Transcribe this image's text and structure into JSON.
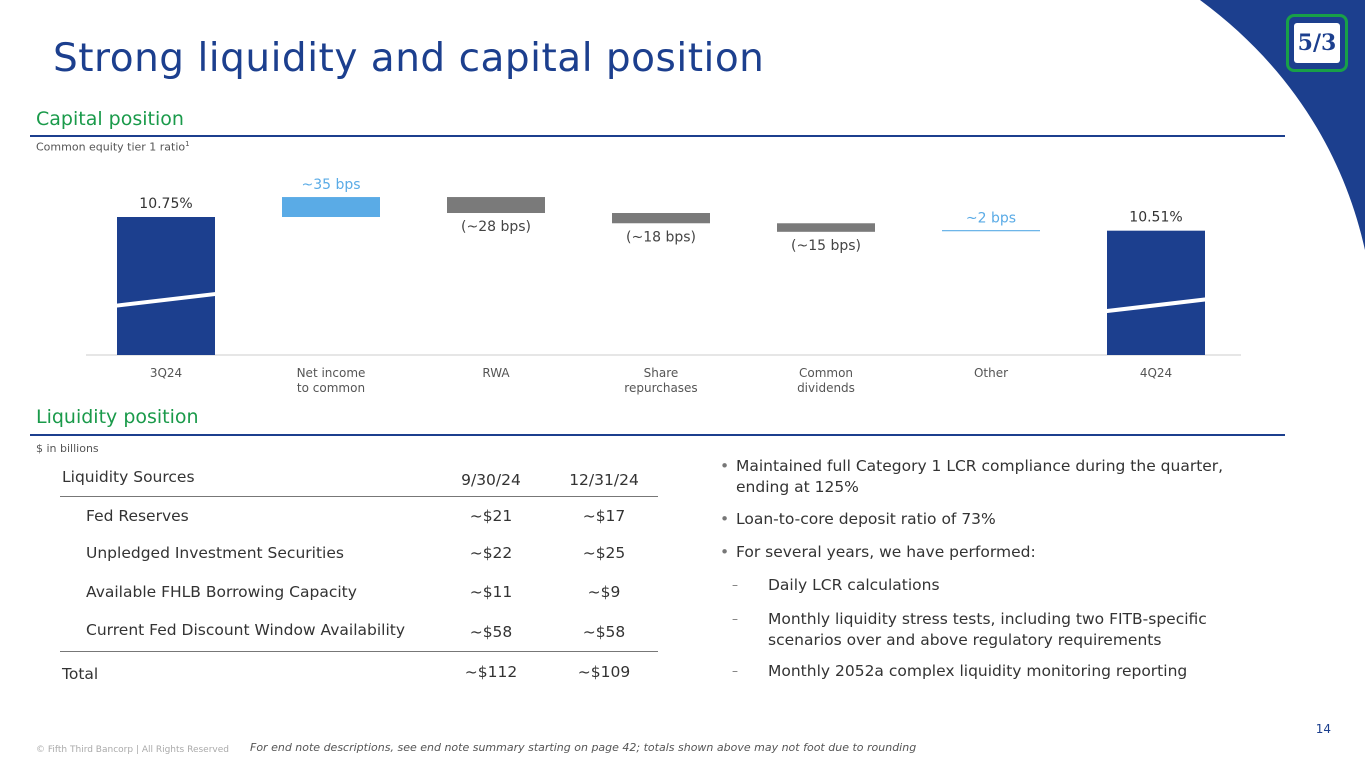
{
  "slide": {
    "title": "Strong liquidity and capital position",
    "page_number": "14",
    "copyright": "© Fifth Third Bancorp | All Rights Reserved",
    "footnote": "For end note descriptions, see end note summary starting on page 42; totals shown above may not foot due to rounding",
    "logo_text": "5/3"
  },
  "capital": {
    "section_title": "Capital position",
    "subtitle": "Common equity tier 1 ratio",
    "subtitle_sup": "1"
  },
  "colors": {
    "primary": "#1c3f8e",
    "accent_green": "#1a9a4a",
    "increase": "#5aabe6",
    "decrease": "#7a7a7a"
  },
  "chart_data": {
    "type": "bar",
    "subtype": "waterfall",
    "title": "",
    "ylabel": "Common equity tier 1 ratio",
    "unit": "%",
    "categories": [
      "3Q24",
      "Net income to common",
      "RWA",
      "Share repurchases",
      "Common dividends",
      "Other",
      "4Q24"
    ],
    "category_lines": [
      [
        "3Q24"
      ],
      [
        "Net income",
        "to common"
      ],
      [
        "RWA"
      ],
      [
        "Share",
        "repurchases"
      ],
      [
        "Common",
        "dividends"
      ],
      [
        "Other"
      ],
      [
        "4Q24"
      ]
    ],
    "start_value": 10.75,
    "end_value": 10.51,
    "changes_bps": [
      35,
      -28,
      -18,
      -15,
      2
    ],
    "labels": [
      "10.75%",
      "~35 bps",
      "(~28 bps)",
      "(~18 bps)",
      "(~15 bps)",
      "~2 bps",
      "10.51%"
    ],
    "axis_broken": true,
    "grid": false,
    "legend": "none"
  },
  "liquidity": {
    "section_title": "Liquidity position",
    "subtitle": "$ in billions",
    "table": {
      "headers": [
        "Liquidity Sources",
        "9/30/24",
        "12/31/24"
      ],
      "rows": [
        {
          "name": "Fed Reserves",
          "v1": "~$21",
          "v2": "~$17"
        },
        {
          "name": "Unpledged Investment Securities",
          "v1": "~$22",
          "v2": "~$25"
        },
        {
          "name": "Available FHLB Borrowing Capacity",
          "v1": "~$11",
          "v2": "~$9"
        },
        {
          "name": "Current Fed Discount Window Availability",
          "v1": "~$58",
          "v2": "~$58"
        }
      ],
      "total": {
        "name": "Total",
        "v1": "~$112",
        "v2": "~$109"
      }
    },
    "bullets": [
      {
        "level": 1,
        "text": "Maintained full Category 1 LCR compliance during the quarter, ending at 125%"
      },
      {
        "level": 1,
        "text": "Loan-to-core deposit ratio of 73%"
      },
      {
        "level": 1,
        "text": "For several years, we have performed:"
      },
      {
        "level": 2,
        "text": "Daily LCR calculations"
      },
      {
        "level": 2,
        "text": "Monthly liquidity stress tests, including two FITB-specific scenarios over and above regulatory requirements"
      },
      {
        "level": 2,
        "text": "Monthly 2052a complex liquidity monitoring reporting"
      }
    ]
  }
}
